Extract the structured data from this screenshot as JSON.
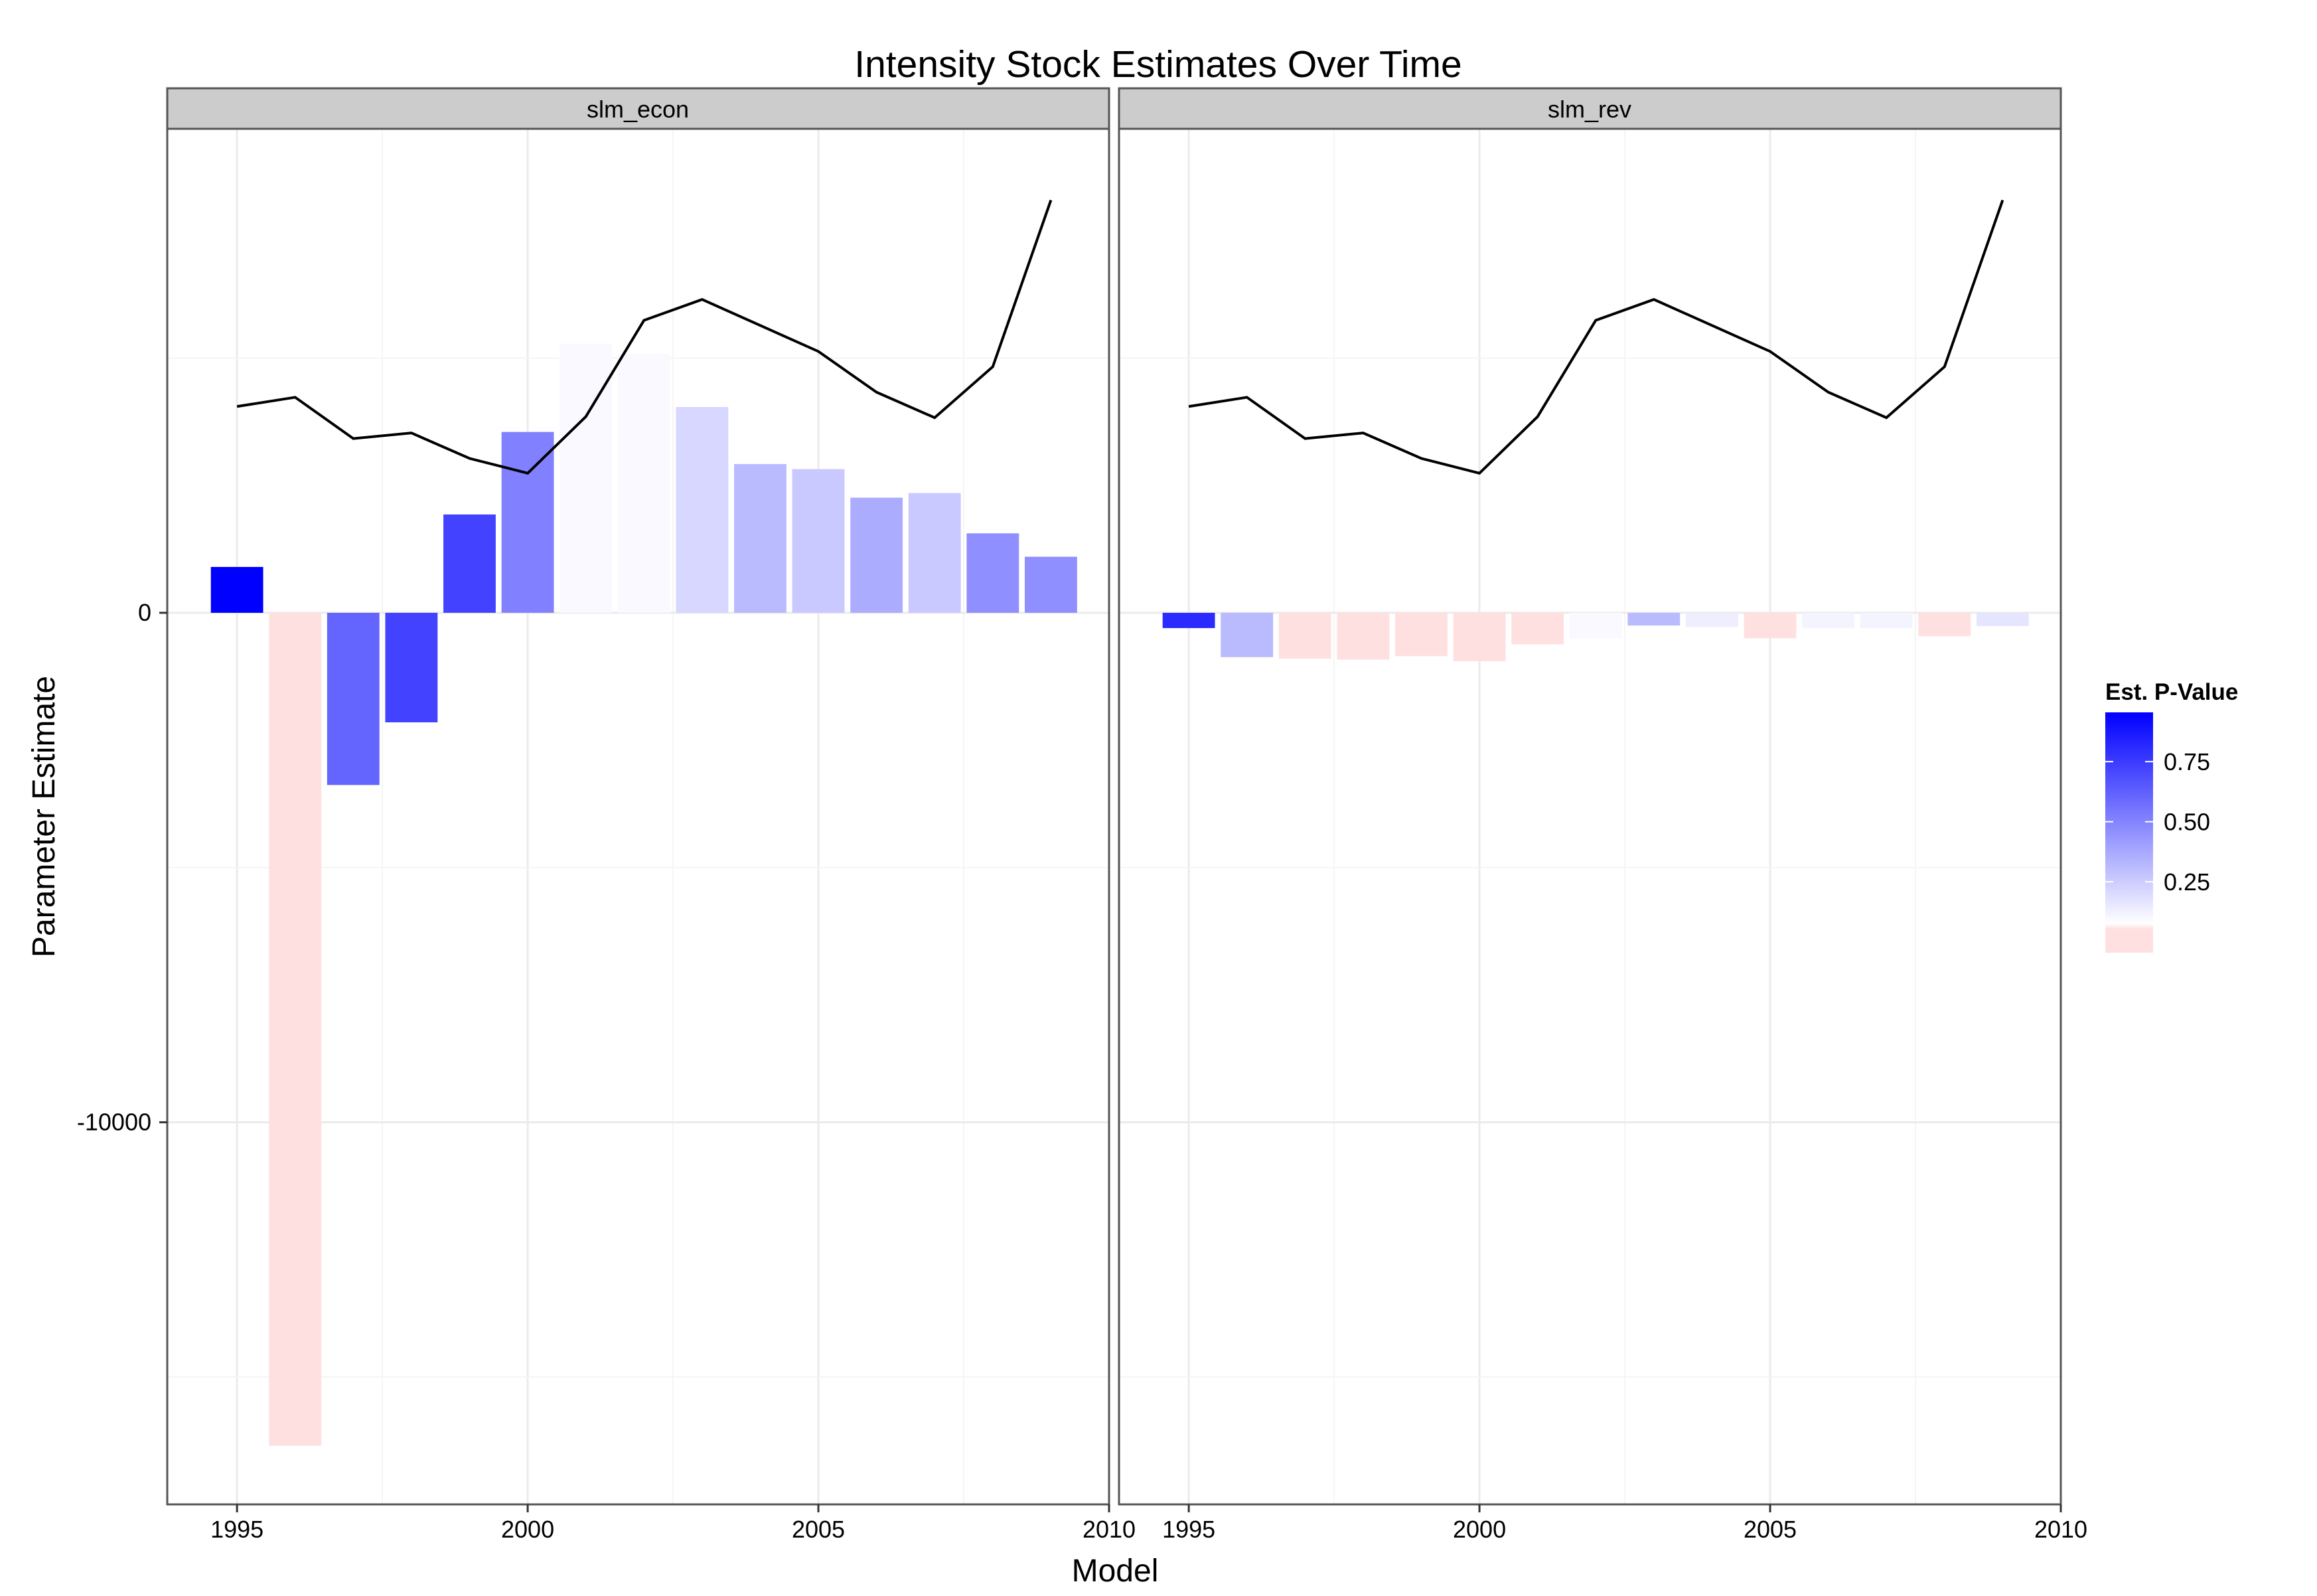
{
  "chart_data": {
    "type": "bar",
    "title": "Intensity Stock Estimates Over Time",
    "xlabel": "Model",
    "ylabel": "Parameter Estimate",
    "x_ticks": [
      1995,
      2000,
      2005,
      2010
    ],
    "y_ticks": [
      0,
      -10000
    ],
    "xlim": [
      1993.8,
      2010.0
    ],
    "ylim": [
      -17500,
      9500
    ],
    "grid": true,
    "legend": {
      "title": "Est. P-Value",
      "placement": "right",
      "labels": [
        "0.75",
        "0.50",
        "0.25"
      ],
      "low_color": "#ffe0e0",
      "mid_color": "#ffffff",
      "high_color": "#0000ff"
    },
    "panels": [
      {
        "label": "slm_econ",
        "years": [
          1995,
          1996,
          1997,
          1998,
          1999,
          2000,
          2001,
          2002,
          2003,
          2004,
          2005,
          2006,
          2007,
          2008,
          2009
        ],
        "values": [
          900,
          -16350,
          -3380,
          -2150,
          1930,
          3550,
          5280,
          5080,
          4040,
          2920,
          2820,
          2260,
          2350,
          1560,
          1100
        ],
        "p_values": [
          0.95,
          0.05,
          0.6,
          0.72,
          0.72,
          0.5,
          0.08,
          0.08,
          0.2,
          0.3,
          0.25,
          0.35,
          0.25,
          0.45,
          0.45
        ],
        "line_values": [
          4050,
          4230,
          3420,
          3530,
          3030,
          2740,
          3850,
          5740,
          6150,
          5640,
          5130,
          4330,
          3830,
          4830,
          8100
        ]
      },
      {
        "label": "slm_rev",
        "years": [
          1995,
          1996,
          1997,
          1998,
          1999,
          2000,
          2001,
          2002,
          2003,
          2004,
          2005,
          2006,
          2007,
          2008,
          2009
        ],
        "values": [
          -300,
          -870,
          -900,
          -920,
          -850,
          -950,
          -620,
          -500,
          -250,
          -280,
          -500,
          -300,
          -300,
          -460,
          -260
        ],
        "p_values": [
          0.8,
          0.3,
          0.02,
          0.02,
          0.02,
          0.02,
          0.02,
          0.08,
          0.3,
          0.12,
          0.02,
          0.1,
          0.1,
          0.02,
          0.15
        ],
        "line_values": [
          4050,
          4230,
          3420,
          3530,
          3030,
          2740,
          3850,
          5740,
          6150,
          5640,
          5130,
          4330,
          3830,
          4830,
          8100
        ]
      }
    ]
  }
}
